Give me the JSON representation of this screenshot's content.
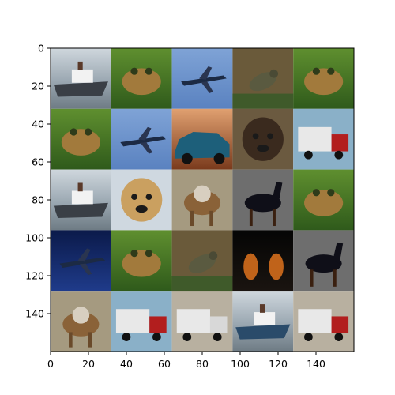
{
  "chart_data": {
    "type": "image-grid",
    "xlim": [
      0,
      160
    ],
    "ylim": [
      160,
      0
    ],
    "grid": false,
    "x_ticks": [
      0,
      20,
      40,
      60,
      80,
      100,
      120,
      140
    ],
    "y_ticks": [
      0,
      20,
      40,
      60,
      80,
      100,
      120,
      140
    ],
    "rows": 5,
    "cols": 5,
    "tile_size": 32,
    "tiles": [
      [
        "ship",
        "frog",
        "airplane",
        "bird",
        "frog"
      ],
      [
        "frog",
        "airplane",
        "automobile",
        "dog",
        "truck"
      ],
      [
        "ship",
        "dog",
        "deer",
        "horse",
        "frog"
      ],
      [
        "airplane",
        "frog",
        "bird",
        "cat",
        "horse"
      ],
      [
        "deer",
        "truck",
        "truck",
        "ship",
        "truck"
      ]
    ]
  }
}
